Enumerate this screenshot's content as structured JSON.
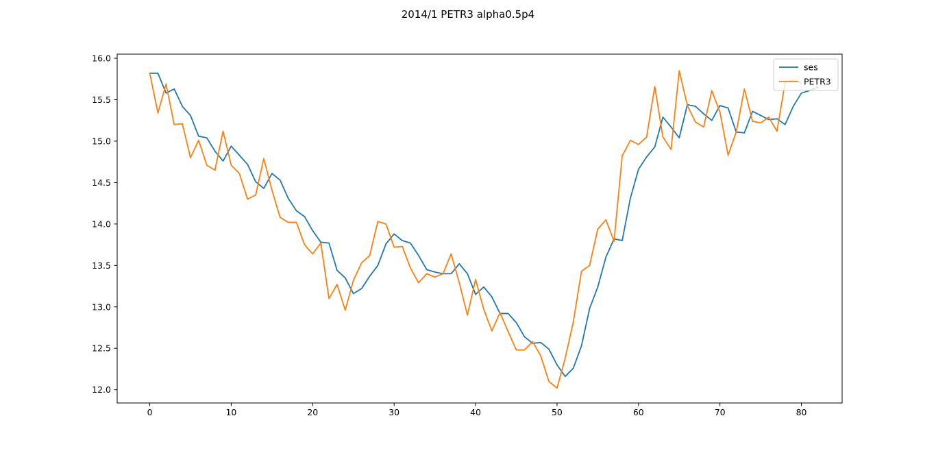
{
  "chart_data": {
    "type": "line",
    "title": "2014/1 PETR3 alpha0.5p4",
    "xlabel": "",
    "ylabel": "",
    "xlim": [
      -4,
      85
    ],
    "ylim": [
      11.84,
      16.05
    ],
    "xticks": [
      0,
      10,
      20,
      30,
      40,
      50,
      60,
      70,
      80
    ],
    "yticks": [
      12.0,
      12.5,
      13.0,
      13.5,
      14.0,
      14.5,
      15.0,
      15.5,
      16.0
    ],
    "ytick_labels": [
      "12.0",
      "12.5",
      "13.0",
      "13.5",
      "14.0",
      "14.5",
      "15.0",
      "15.5",
      "16.0"
    ],
    "xtick_labels": [
      "0",
      "10",
      "20",
      "30",
      "40",
      "50",
      "60",
      "70",
      "80"
    ],
    "grid": false,
    "legend": "upper-right",
    "series": [
      {
        "name": "ses",
        "color": "#1f77b4",
        "x": [
          0,
          1,
          2,
          3,
          4,
          5,
          6,
          7,
          8,
          9,
          10,
          11,
          12,
          13,
          14,
          15,
          16,
          17,
          18,
          19,
          20,
          21,
          22,
          23,
          24,
          25,
          26,
          27,
          28,
          29,
          30,
          31,
          32,
          33,
          34,
          35,
          36,
          37,
          38,
          39,
          40,
          41,
          42,
          43,
          44,
          45,
          46,
          47,
          48,
          49,
          50,
          51,
          52,
          53,
          54,
          55,
          56,
          57,
          58,
          59,
          60,
          61,
          62,
          63,
          64,
          65,
          66,
          67,
          68,
          69,
          70,
          71,
          72,
          73,
          74,
          75,
          76,
          77,
          78,
          79,
          80,
          81,
          82
        ],
        "values": [
          15.82,
          15.82,
          15.58,
          15.63,
          15.42,
          15.31,
          15.06,
          15.04,
          14.88,
          14.76,
          14.94,
          14.83,
          14.72,
          14.51,
          14.43,
          14.61,
          14.53,
          14.31,
          14.16,
          14.09,
          13.92,
          13.78,
          13.77,
          13.44,
          13.35,
          13.16,
          13.22,
          13.37,
          13.5,
          13.76,
          13.88,
          13.8,
          13.77,
          13.62,
          13.45,
          13.42,
          13.4,
          13.4,
          13.52,
          13.4,
          13.15,
          13.24,
          13.12,
          12.92,
          12.92,
          12.81,
          12.64,
          12.56,
          12.57,
          12.49,
          12.3,
          12.16,
          12.26,
          12.53,
          12.98,
          13.24,
          13.6,
          13.82,
          13.8,
          14.31,
          14.66,
          14.81,
          14.93,
          15.29,
          15.17,
          15.04,
          15.44,
          15.42,
          15.33,
          15.25,
          15.43,
          15.4,
          15.11,
          15.1,
          15.36,
          15.31,
          15.26,
          15.27,
          15.2,
          15.42,
          15.58,
          15.61,
          15.65
        ]
      },
      {
        "name": "PETR3",
        "color": "#ff7f0e",
        "x": [
          0,
          1,
          2,
          3,
          4,
          5,
          6,
          7,
          8,
          9,
          10,
          11,
          12,
          13,
          14,
          15,
          16,
          17,
          18,
          19,
          20,
          21,
          22,
          23,
          24,
          25,
          26,
          27,
          28,
          29,
          30,
          31,
          32,
          33,
          34,
          35,
          36,
          37,
          38,
          39,
          40,
          41,
          42,
          43,
          44,
          45,
          46,
          47,
          48,
          49,
          50,
          51,
          52,
          53,
          54,
          55,
          56,
          57,
          58,
          59,
          60,
          61,
          62,
          63,
          64,
          65,
          66,
          67,
          68,
          69,
          70,
          71,
          72,
          73,
          74,
          75,
          76,
          77,
          78,
          79,
          80
        ],
        "values": [
          15.82,
          15.34,
          15.69,
          15.2,
          15.21,
          14.8,
          15.01,
          14.71,
          14.65,
          15.12,
          14.71,
          14.61,
          14.3,
          14.35,
          14.79,
          14.41,
          14.08,
          14.02,
          14.02,
          13.75,
          13.64,
          13.77,
          13.1,
          13.27,
          12.96,
          13.32,
          13.53,
          13.62,
          14.03,
          14.0,
          13.72,
          13.73,
          13.47,
          13.29,
          13.4,
          13.36,
          13.4,
          13.64,
          13.29,
          12.9,
          13.33,
          12.97,
          12.71,
          12.93,
          12.7,
          12.48,
          12.48,
          12.58,
          12.41,
          12.1,
          12.02,
          12.38,
          12.82,
          13.43,
          13.5,
          13.94,
          14.05,
          13.79,
          14.82,
          15.01,
          14.96,
          15.05,
          15.66,
          15.05,
          14.9,
          15.85,
          15.43,
          15.23,
          15.17,
          15.61,
          15.35,
          14.83,
          15.11,
          15.63,
          15.24,
          15.22,
          15.29,
          15.12,
          15.71,
          15.74,
          15.7
        ]
      }
    ]
  }
}
